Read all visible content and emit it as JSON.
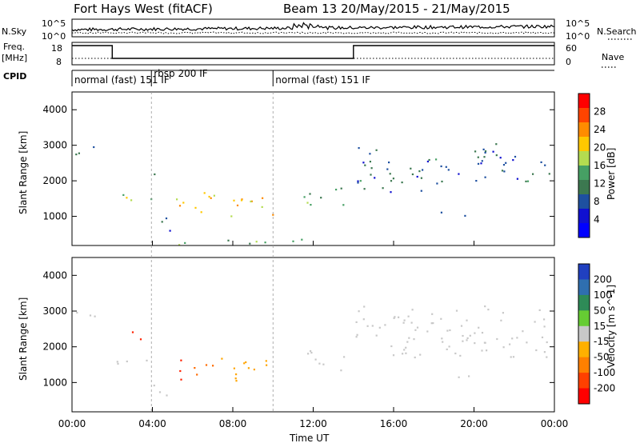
{
  "title": {
    "station": "Fort Hays West (fitACF)",
    "beam": "Beam 13",
    "dates": "20/May/2015 - 21/May/2015"
  },
  "top_panels": {
    "nsky_label": "N.Sky",
    "nsky_ticks": [
      "10^5",
      "10^0"
    ],
    "nsearch_label": "N.Search",
    "nsearch_ticks": [
      "10^5",
      "10^0"
    ],
    "freq_label": "Freq.",
    "freq_unit": "[MHz]",
    "freq_ticks": [
      "18",
      "8"
    ],
    "nave_label": "Nave",
    "nave_ticks": [
      "60",
      "0"
    ],
    "cpid_label": "CPID",
    "cpid_segments": [
      {
        "label": "normal (fast) 151 IF",
        "start": 0.0
      },
      {
        "label": "rbsp 200 IF",
        "start": 3.95
      },
      {
        "label": "normal (fast) 151 IF",
        "start": 10.0
      }
    ],
    "freq_steps": [
      {
        "start": 0.0,
        "end": 2.0,
        "level": "high"
      },
      {
        "start": 2.0,
        "end": 14.0,
        "level": "low"
      },
      {
        "start": 14.0,
        "end": 24.0,
        "level": "high"
      }
    ]
  },
  "power_panel": {
    "ylabel": "Slant Range [km]",
    "colorbar_label": "Power [dB]",
    "colorbar_ticks": [
      "28",
      "24",
      "20",
      "16",
      "12",
      "8",
      "4"
    ],
    "colorbar_colors": [
      "#ff0000",
      "#ff4400",
      "#ff8c00",
      "#ffc800",
      "#b4dc50",
      "#46a064",
      "#3c7850",
      "#1e50a0",
      "#1010d0",
      "#0000ff"
    ]
  },
  "velocity_panel": {
    "ylabel": "Slant Range [km]",
    "colorbar_label": "Velocity [m s^-1]",
    "colorbar_ticks": [
      "200",
      "100",
      "50",
      "15",
      "-15",
      "-50",
      "-100",
      "-200"
    ],
    "colorbar_colors": [
      "#2040c0",
      "#2f6fb0",
      "#2e8b57",
      "#66cc33",
      "#c8c8c8",
      "#ffb000",
      "#ff8000",
      "#ff4000",
      "#ff0000"
    ]
  },
  "y_ticks": [
    "4000",
    "3000",
    "2000",
    "1000"
  ],
  "x_ticks": [
    "00:00",
    "04:00",
    "08:00",
    "12:00",
    "16:00",
    "20:00",
    "00:00"
  ],
  "xlabel": "Time UT",
  "chart_data": {
    "type": "heatmap",
    "title": "Fort Hays West (fitACF)  Beam 13 20/May/2015 - 21/May/2015",
    "xlabel": "Time UT",
    "ylabel": "Slant Range [km]",
    "xlim_hours": [
      0,
      24
    ],
    "ylim_km": [
      180,
      4500
    ],
    "power_blobs": [
      {
        "t0": 0.0,
        "t1": 1.6,
        "r0": 2700,
        "r1": 3000,
        "power": 8
      },
      {
        "t0": 2.0,
        "t1": 4.0,
        "r0": 1300,
        "r1": 1700,
        "power": 16
      },
      {
        "t0": 3.6,
        "t1": 4.2,
        "r0": 2200,
        "r1": 2400,
        "power": 12
      },
      {
        "t0": 4.0,
        "t1": 5.0,
        "r0": 600,
        "r1": 1100,
        "power": 8
      },
      {
        "t0": 5.0,
        "t1": 10.0,
        "r0": 1000,
        "r1": 1700,
        "power": 20
      },
      {
        "t0": 5.0,
        "t1": 12.0,
        "r0": 200,
        "r1": 400,
        "power": 12
      },
      {
        "t0": 11.5,
        "t1": 13.5,
        "r0": 1300,
        "r1": 2000,
        "power": 12
      },
      {
        "t0": 14.0,
        "t1": 18.5,
        "r0": 1700,
        "r1": 3000,
        "power": 8
      },
      {
        "t0": 17.5,
        "t1": 20.5,
        "r0": 2200,
        "r1": 2700,
        "power": 6
      },
      {
        "t0": 18.0,
        "t1": 20.0,
        "r0": 1000,
        "r1": 1200,
        "power": 6
      },
      {
        "t0": 20.0,
        "t1": 24.0,
        "r0": 2000,
        "r1": 3100,
        "power": 8
      }
    ],
    "velocity_blobs": [
      {
        "t0": 0.0,
        "t1": 1.6,
        "r0": 2700,
        "r1": 3000,
        "velocity": 0
      },
      {
        "t0": 2.0,
        "t1": 4.0,
        "r0": 1300,
        "r1": 1700,
        "velocity": 0
      },
      {
        "t0": 2.7,
        "t1": 3.4,
        "r0": 2100,
        "r1": 2500,
        "velocity": -200
      },
      {
        "t0": 4.0,
        "t1": 5.0,
        "r0": 600,
        "r1": 1100,
        "velocity": -15
      },
      {
        "t0": 5.0,
        "t1": 7.2,
        "r0": 1100,
        "r1": 1700,
        "velocity": -150
      },
      {
        "t0": 7.2,
        "t1": 10.0,
        "r0": 1000,
        "r1": 1700,
        "velocity": -50
      },
      {
        "t0": 11.5,
        "t1": 13.5,
        "r0": 1300,
        "r1": 2000,
        "velocity": 0
      },
      {
        "t0": 14.0,
        "t1": 24.0,
        "r0": 1700,
        "r1": 3200,
        "velocity": 0
      },
      {
        "t0": 18.0,
        "t1": 20.0,
        "r0": 1000,
        "r1": 1200,
        "velocity": 0
      }
    ]
  }
}
